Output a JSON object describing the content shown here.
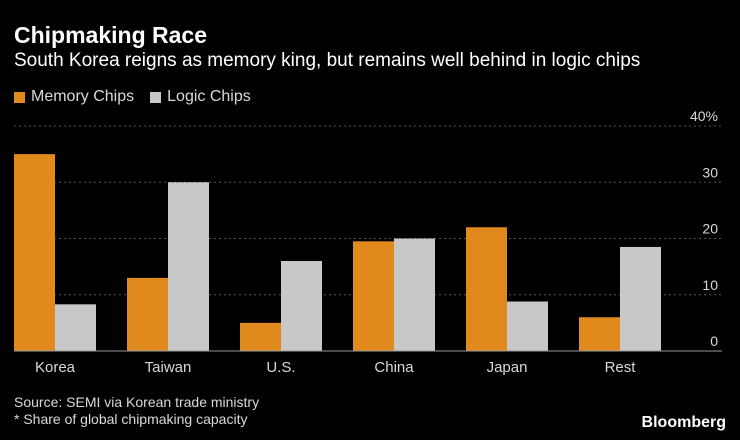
{
  "header": {
    "title": "Chipmaking Race",
    "subtitle": "South Korea reigns as memory king, but remains well behind in logic chips"
  },
  "footer": {
    "source": "Source: SEMI via Korean trade ministry",
    "note": "* Share of global chipmaking capacity",
    "brand": "Bloomberg"
  },
  "colors": {
    "memory": "#e08a1e",
    "logic": "#c8c8c8",
    "background": "#000000",
    "grid": "#555555"
  },
  "chart_data": {
    "type": "bar",
    "title": "Chipmaking Race",
    "subtitle": "South Korea reigns as memory king, but remains well behind in logic chips",
    "categories": [
      "Korea",
      "Taiwan",
      "U.S.",
      "China",
      "Japan",
      "Rest"
    ],
    "series": [
      {
        "name": "Memory Chips",
        "color": "#e08a1e",
        "values": [
          35,
          13,
          5,
          19.5,
          22,
          6
        ]
      },
      {
        "name": "Logic Chips",
        "color": "#c8c8c8",
        "values": [
          8.3,
          30,
          16,
          20,
          8.8,
          18.5
        ]
      }
    ],
    "yticks": [
      "40%",
      "30",
      "20",
      "10",
      "0"
    ],
    "ytick_values": [
      40,
      30,
      20,
      10,
      0
    ],
    "ylim": [
      0,
      40
    ],
    "xlabel": "",
    "ylabel": "",
    "grid": true,
    "legend": "top-left",
    "y_axis_side": "right"
  }
}
